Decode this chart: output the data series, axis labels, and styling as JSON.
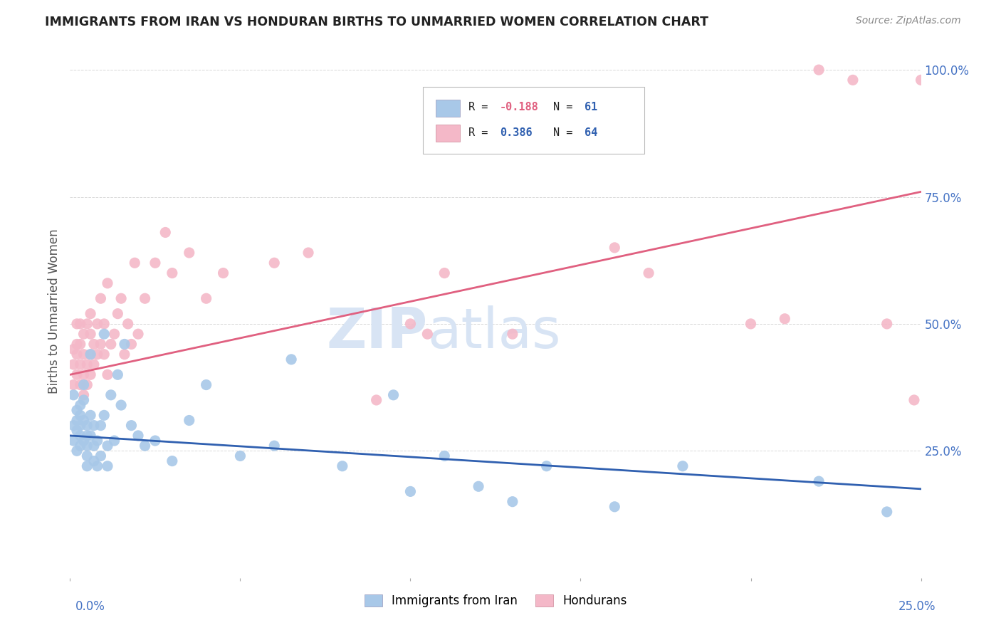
{
  "title": "IMMIGRANTS FROM IRAN VS HONDURAN BIRTHS TO UNMARRIED WOMEN CORRELATION CHART",
  "source": "Source: ZipAtlas.com",
  "ylabel": "Births to Unmarried Women",
  "legend1_label": "Immigrants from Iran",
  "legend2_label": "Hondurans",
  "r1": "-0.188",
  "n1": "61",
  "r2": "0.386",
  "n2": "64",
  "blue_color": "#a8c8e8",
  "pink_color": "#f4b8c8",
  "blue_line_color": "#3060b0",
  "pink_line_color": "#e06080",
  "title_color": "#222222",
  "axis_label_color": "#4472C4",
  "watermark_color": "#d8e4f4",
  "background_color": "#ffffff",
  "grid_color": "#d8d8d8",
  "xlim": [
    0.0,
    0.25
  ],
  "ylim": [
    0.0,
    1.05
  ],
  "yticks": [
    0.25,
    0.5,
    0.75,
    1.0
  ],
  "ytick_labels": [
    "25.0%",
    "50.0%",
    "75.0%",
    "100.0%"
  ],
  "blue_line_y0": 0.28,
  "blue_line_y1": 0.175,
  "pink_line_y0": 0.4,
  "pink_line_y1": 0.76,
  "blue_scatter_x": [
    0.001,
    0.001,
    0.001,
    0.002,
    0.002,
    0.002,
    0.002,
    0.003,
    0.003,
    0.003,
    0.003,
    0.003,
    0.004,
    0.004,
    0.004,
    0.004,
    0.005,
    0.005,
    0.005,
    0.005,
    0.005,
    0.006,
    0.006,
    0.006,
    0.007,
    0.007,
    0.007,
    0.008,
    0.008,
    0.009,
    0.009,
    0.01,
    0.01,
    0.011,
    0.011,
    0.012,
    0.013,
    0.014,
    0.015,
    0.016,
    0.018,
    0.02,
    0.022,
    0.025,
    0.03,
    0.035,
    0.04,
    0.05,
    0.06,
    0.065,
    0.08,
    0.095,
    0.1,
    0.11,
    0.12,
    0.13,
    0.14,
    0.16,
    0.18,
    0.22,
    0.24
  ],
  "blue_scatter_y": [
    0.3,
    0.27,
    0.36,
    0.29,
    0.33,
    0.31,
    0.25,
    0.26,
    0.3,
    0.34,
    0.28,
    0.32,
    0.27,
    0.31,
    0.35,
    0.38,
    0.28,
    0.26,
    0.3,
    0.24,
    0.22,
    0.44,
    0.32,
    0.28,
    0.26,
    0.3,
    0.23,
    0.27,
    0.22,
    0.24,
    0.3,
    0.48,
    0.32,
    0.26,
    0.22,
    0.36,
    0.27,
    0.4,
    0.34,
    0.46,
    0.3,
    0.28,
    0.26,
    0.27,
    0.23,
    0.31,
    0.38,
    0.24,
    0.26,
    0.43,
    0.22,
    0.36,
    0.17,
    0.24,
    0.18,
    0.15,
    0.22,
    0.14,
    0.22,
    0.19,
    0.13
  ],
  "pink_scatter_x": [
    0.001,
    0.001,
    0.001,
    0.002,
    0.002,
    0.002,
    0.002,
    0.003,
    0.003,
    0.003,
    0.003,
    0.004,
    0.004,
    0.004,
    0.004,
    0.005,
    0.005,
    0.005,
    0.006,
    0.006,
    0.006,
    0.006,
    0.007,
    0.007,
    0.008,
    0.008,
    0.009,
    0.009,
    0.01,
    0.01,
    0.011,
    0.011,
    0.012,
    0.013,
    0.014,
    0.015,
    0.016,
    0.017,
    0.018,
    0.019,
    0.02,
    0.022,
    0.025,
    0.028,
    0.03,
    0.035,
    0.04,
    0.045,
    0.06,
    0.07,
    0.09,
    0.1,
    0.105,
    0.11,
    0.13,
    0.16,
    0.17,
    0.2,
    0.21,
    0.22,
    0.23,
    0.24,
    0.248,
    0.25
  ],
  "pink_scatter_y": [
    0.38,
    0.42,
    0.45,
    0.4,
    0.44,
    0.46,
    0.5,
    0.38,
    0.42,
    0.46,
    0.5,
    0.36,
    0.4,
    0.44,
    0.48,
    0.38,
    0.42,
    0.5,
    0.4,
    0.44,
    0.48,
    0.52,
    0.42,
    0.46,
    0.44,
    0.5,
    0.46,
    0.55,
    0.44,
    0.5,
    0.4,
    0.58,
    0.46,
    0.48,
    0.52,
    0.55,
    0.44,
    0.5,
    0.46,
    0.62,
    0.48,
    0.55,
    0.62,
    0.68,
    0.6,
    0.64,
    0.55,
    0.6,
    0.62,
    0.64,
    0.35,
    0.5,
    0.48,
    0.6,
    0.48,
    0.65,
    0.6,
    0.5,
    0.51,
    1.0,
    0.98,
    0.5,
    0.35,
    0.98
  ]
}
